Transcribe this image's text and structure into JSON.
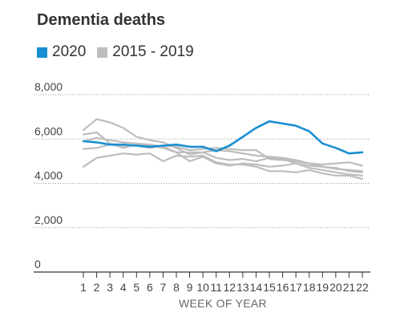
{
  "title": "Dementia deaths",
  "legend": [
    {
      "label": "2020",
      "color": "#1a8fd1"
    },
    {
      "label": "2015 - 2019",
      "color": "#bdbdbd"
    }
  ],
  "chart_data": {
    "type": "line",
    "title": "Dementia deaths",
    "xlabel": "WEEK OF YEAR",
    "ylabel": "",
    "ylim": [
      0,
      8000
    ],
    "y_ticks": [
      "8,000",
      "6,000",
      "4,000",
      "2,000",
      "0"
    ],
    "y_tick_values": [
      8000,
      6000,
      4000,
      2000,
      0
    ],
    "x": [
      1,
      2,
      3,
      4,
      5,
      6,
      7,
      8,
      9,
      10,
      11,
      12,
      13,
      14,
      15,
      16,
      17,
      18,
      19,
      20,
      21,
      22
    ],
    "grid": true,
    "series": [
      {
        "name": "2020",
        "color": "#1a8fd1",
        "values": [
          5900,
          5850,
          5750,
          5750,
          5700,
          5650,
          5700,
          5750,
          5650,
          5650,
          5450,
          5700,
          6100,
          6500,
          6800,
          6700,
          6600,
          6350,
          5800,
          5600,
          5350,
          5400
        ]
      },
      {
        "name": "2015 - 2019",
        "color": "#bdbdbd",
        "values": [
          6400,
          6900,
          6750,
          6500,
          6100,
          5950,
          5850,
          5600,
          5300,
          5400,
          5500,
          5450,
          5350,
          5250,
          5200,
          5150,
          5050,
          4900,
          4750,
          4650,
          4600,
          4550
        ]
      },
      {
        "name": "2015 - 2019",
        "color": "#bdbdbd",
        "values": [
          6200,
          6300,
          5800,
          5600,
          5750,
          5700,
          5600,
          5400,
          5000,
          5200,
          4900,
          4800,
          4900,
          4850,
          4750,
          4800,
          4900,
          4700,
          4600,
          4500,
          4400,
          4350
        ]
      },
      {
        "name": "2015 - 2019",
        "color": "#bdbdbd",
        "values": [
          5550,
          5600,
          5750,
          5650,
          5700,
          5600,
          5700,
          5650,
          5500,
          5550,
          5600,
          5550,
          5500,
          5500,
          5100,
          5050,
          5000,
          4900,
          4850,
          4900,
          4950,
          4800
        ]
      },
      {
        "name": "2015 - 2019",
        "color": "#bdbdbd",
        "values": [
          4750,
          5150,
          5250,
          5350,
          5300,
          5350,
          5000,
          5250,
          5200,
          5250,
          4950,
          4850,
          4850,
          4750,
          4550,
          4550,
          4500,
          4600,
          4450,
          4350,
          4350,
          4200
        ]
      },
      {
        "name": "2015 - 2019",
        "color": "#bdbdbd",
        "values": [
          5900,
          6050,
          5950,
          5850,
          5800,
          5750,
          5650,
          5400,
          5400,
          5400,
          5150,
          5050,
          5100,
          5000,
          5150,
          5100,
          4900,
          4800,
          4750,
          4700,
          4550,
          4500
        ]
      }
    ]
  }
}
